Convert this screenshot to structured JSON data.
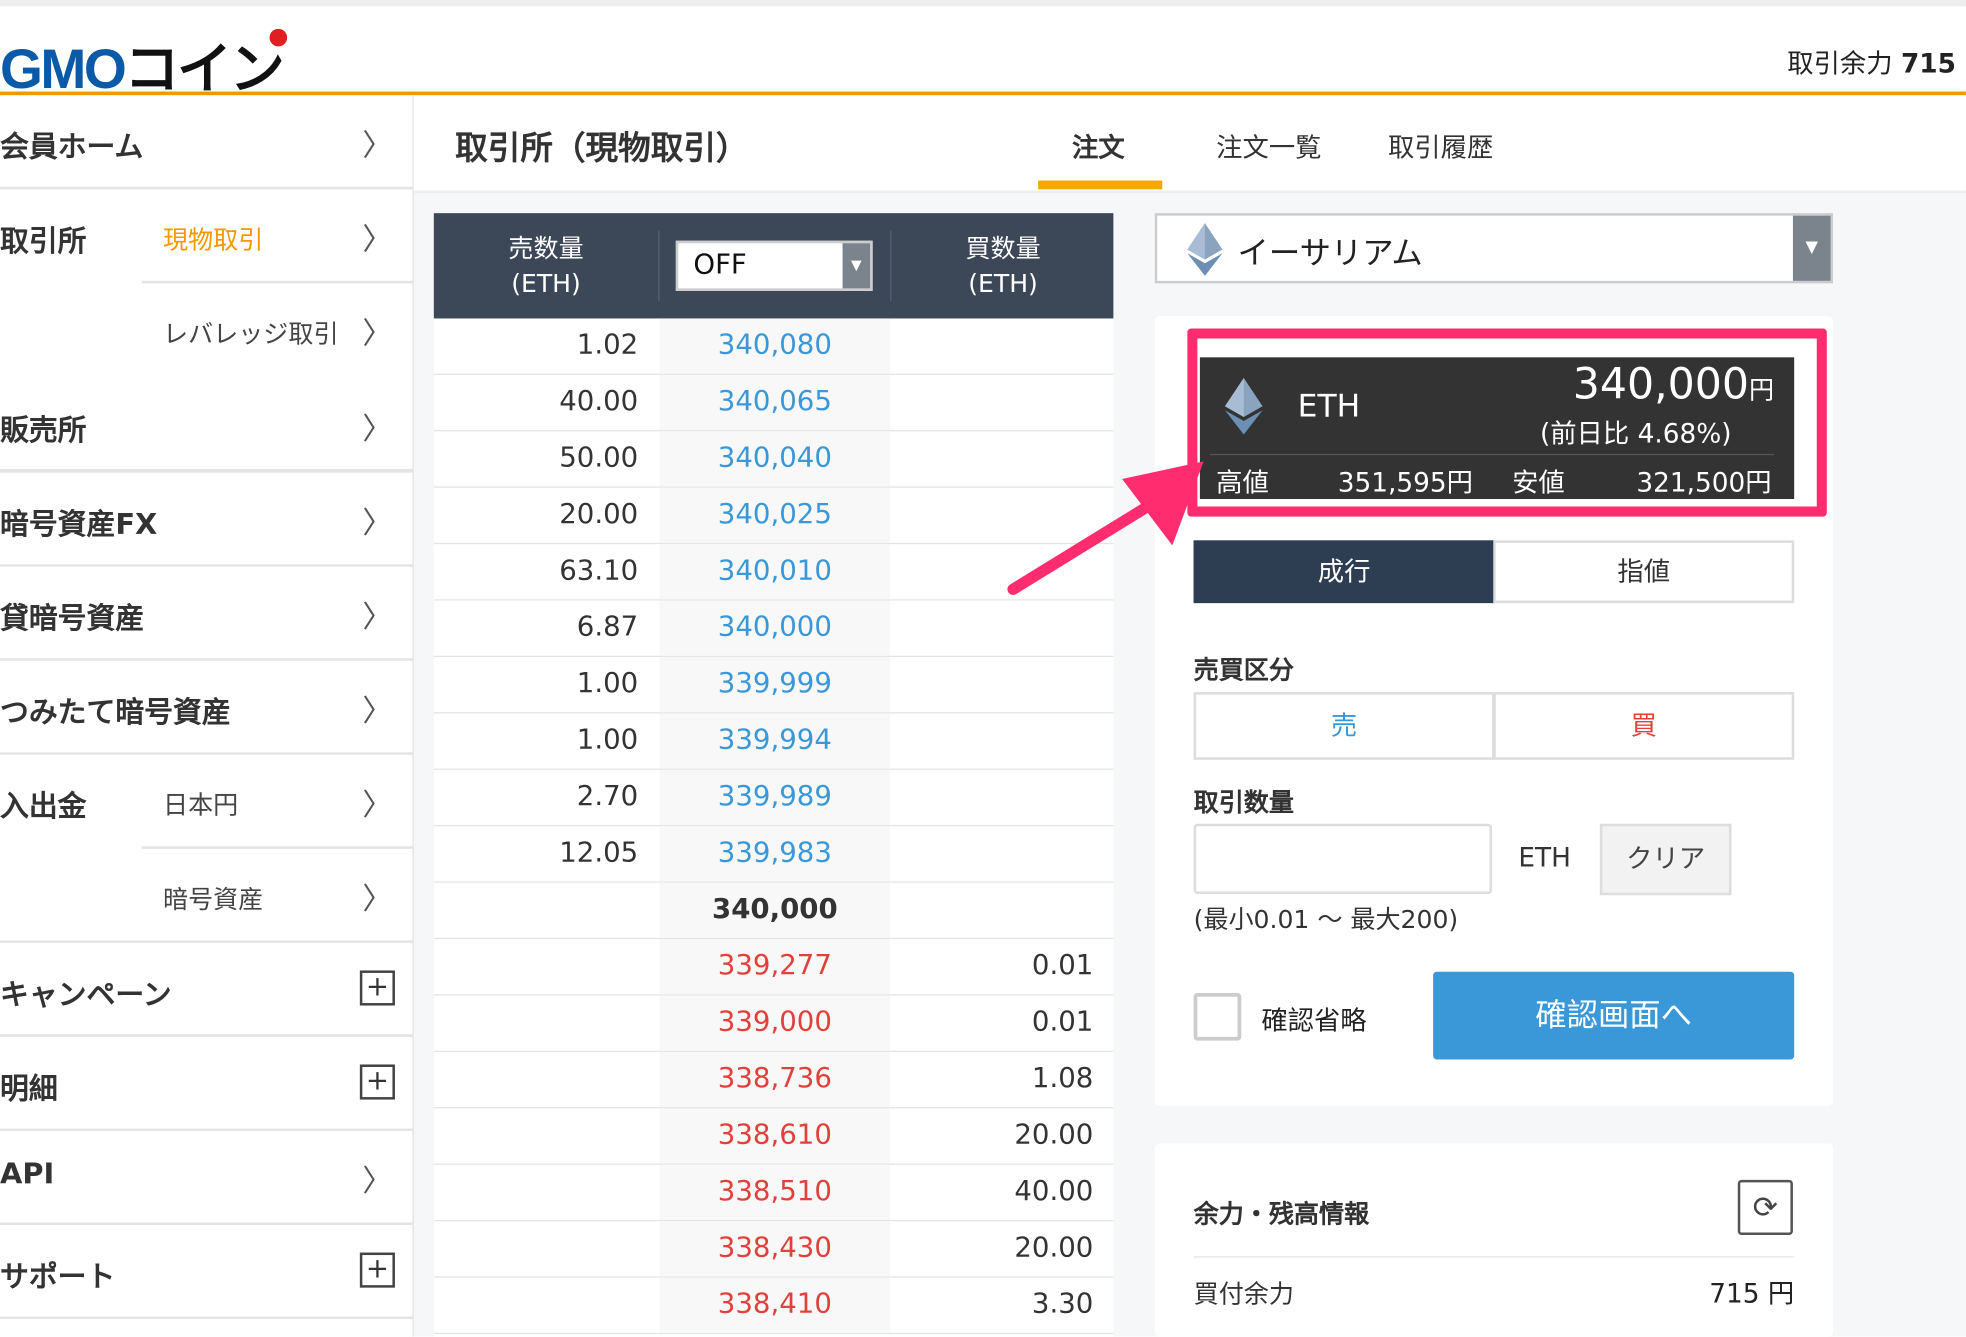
{
  "header": {
    "logo": "GMOコイン",
    "logo_latin": "GMO",
    "logo_kana": "コイン",
    "trading_power_label": "取引余力",
    "trading_power_value": "715"
  },
  "sidebar": {
    "home": "会員ホーム",
    "exchange": "取引所",
    "exchange_spot": "現物取引",
    "exchange_leverage": "レバレッジ取引",
    "sales": "販売所",
    "fx": "暗号資産FX",
    "lending": "貸暗号資産",
    "tsumitate": "つみたて暗号資産",
    "deposit": "入出金",
    "deposit_jpy": "日本円",
    "deposit_crypto": "暗号資産",
    "campaign": "キャンペーン",
    "statement": "明細",
    "api": "API",
    "support": "サポート",
    "accent": "#f39800"
  },
  "page": {
    "title": "取引所（現物取引）",
    "tabs": [
      "注文",
      "注文一覧",
      "取引履歴"
    ],
    "active_tab": 0
  },
  "orderbook": {
    "sell_header": [
      "売数量",
      "(ETH)"
    ],
    "buy_header": [
      "買数量",
      "(ETH)"
    ],
    "grouping_value": "OFF",
    "asks": [
      [
        "1.02",
        "340,080"
      ],
      [
        "40.00",
        "340,065"
      ],
      [
        "50.00",
        "340,040"
      ],
      [
        "20.00",
        "340,025"
      ],
      [
        "63.10",
        "340,010"
      ],
      [
        "6.87",
        "340,000"
      ],
      [
        "1.00",
        "339,999"
      ],
      [
        "1.00",
        "339,994"
      ],
      [
        "2.70",
        "339,989"
      ],
      [
        "12.05",
        "339,983"
      ]
    ],
    "mid": "340,000",
    "bids": [
      [
        "339,277",
        "0.01"
      ],
      [
        "339,000",
        "0.01"
      ],
      [
        "338,736",
        "1.08"
      ],
      [
        "338,610",
        "20.00"
      ],
      [
        "338,510",
        "40.00"
      ],
      [
        "338,430",
        "20.00"
      ],
      [
        "338,410",
        "3.30"
      ]
    ],
    "ask_color": "#3a98d8",
    "bid_color": "#e0413a"
  },
  "order": {
    "coin": "イーサリアム",
    "ticker": {
      "symbol": "ETH",
      "price": "340,000",
      "unit": "円",
      "change": "(前日比 4.68%)",
      "high_label": "高値",
      "high": "351,595円",
      "low_label": "安値",
      "low": "321,500円"
    },
    "type_tabs": [
      "成行",
      "指値"
    ],
    "active_type": 0,
    "side_label": "売買区分",
    "sell": "売",
    "buy": "買",
    "qty_label": "取引数量",
    "qty_value": "",
    "qty_unit": "ETH",
    "clear": "クリア",
    "qty_range": "(最小0.01 〜 最大200)",
    "skip_confirm": "確認省略",
    "skip_confirm_checked": false,
    "submit": "確認画面へ",
    "highlight_color": "#ff2d6f"
  },
  "balance": {
    "title": "余力・残高情報",
    "buying_power_label": "買付余力",
    "buying_power": "715 円"
  }
}
